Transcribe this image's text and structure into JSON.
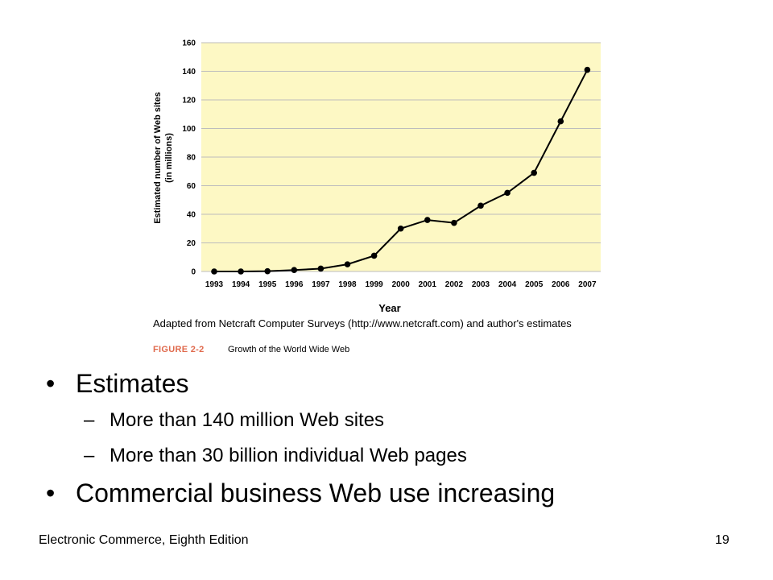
{
  "chart_data": {
    "type": "line",
    "x": [
      1993,
      1994,
      1995,
      1996,
      1997,
      1998,
      1999,
      2000,
      2001,
      2002,
      2003,
      2004,
      2005,
      2006,
      2007
    ],
    "series": [
      {
        "values": [
          0,
          0,
          0.2,
          1,
          2,
          5,
          11,
          30,
          36,
          34,
          46,
          55,
          69,
          105,
          141
        ]
      }
    ],
    "ylim": [
      0,
      160
    ],
    "yticks": [
      "0",
      "20",
      "40",
      "60",
      "80",
      "100",
      "120",
      "140",
      "160"
    ],
    "xticks": [
      "1993",
      "1994",
      "1995",
      "1996",
      "1997",
      "1998",
      "1999",
      "2000",
      "2001",
      "2002",
      "2003",
      "2004",
      "2005",
      "2006",
      "2007"
    ],
    "ylabel_line1": "Estimated number of Web sites",
    "ylabel_line2": "(in millions)",
    "xlabel": "Year",
    "grid": true,
    "plot_background": "#fdf8c4",
    "grid_color": "#bdbdbd",
    "line_color": "#000000"
  },
  "figure": {
    "source": "Adapted from Netcraft Computer Surveys (http://www.netcraft.com) and author's estimates",
    "tag": "FIGURE 2-2",
    "caption": "Growth of the World Wide Web",
    "tag_color": "#e06a4d"
  },
  "bullets": [
    {
      "text": "Estimates",
      "sub": [
        "More than 140 million Web sites",
        "More than 30 billion individual Web pages"
      ]
    },
    {
      "text": "Commercial business Web use increasing",
      "sub": []
    }
  ],
  "bullet_symbol": "•",
  "dash_symbol": "–",
  "footer": {
    "left": "Electronic Commerce, Eighth Edition",
    "page_number": "19"
  }
}
